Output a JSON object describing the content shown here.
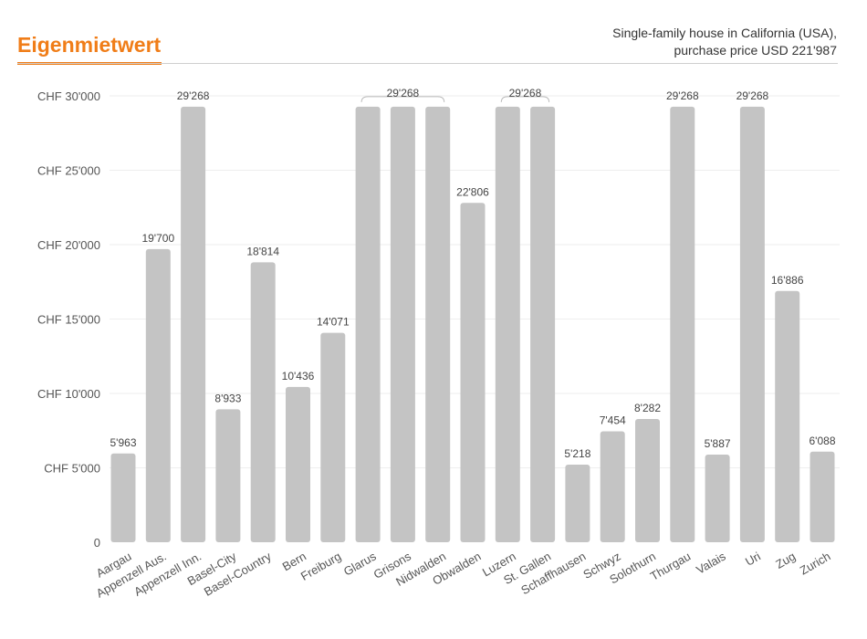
{
  "header": {
    "title": "Eigenmietwert",
    "subtitle_line1": "Single-family house in California (USA),",
    "subtitle_line2": "purchase price USD 221'987"
  },
  "colors": {
    "title": "#f07d18",
    "bar": "#c4c4c4",
    "grid": "#eeeeee",
    "bracket": "#bbbbbb"
  },
  "chart_data": {
    "type": "bar",
    "title": "Eigenmietwert",
    "categories": [
      "Aargau",
      "Appenzell Aus.",
      "Appenzell Inn.",
      "Basel-City",
      "Basel-Country",
      "Bern",
      "Freiburg",
      "Glarus",
      "Grisons",
      "Nidwalden",
      "Obwalden",
      "Luzern",
      "St. Gallen",
      "Schaffhausen",
      "Schwyz",
      "Solothurn",
      "Thurgau",
      "Valais",
      "Uri",
      "Zug",
      "Zurich"
    ],
    "values": [
      5963,
      19700,
      29268,
      8933,
      18814,
      10436,
      14071,
      29268,
      29268,
      29268,
      22806,
      29268,
      29268,
      5218,
      7454,
      8282,
      29268,
      5887,
      29268,
      16886,
      6088
    ],
    "value_labels": [
      {
        "text": "5'963",
        "indices": [
          0
        ]
      },
      {
        "text": "19'700",
        "indices": [
          1
        ]
      },
      {
        "text": "29'268",
        "indices": [
          2
        ]
      },
      {
        "text": "8'933",
        "indices": [
          3
        ]
      },
      {
        "text": "18'814",
        "indices": [
          4
        ]
      },
      {
        "text": "10'436",
        "indices": [
          5
        ]
      },
      {
        "text": "14'071",
        "indices": [
          6
        ]
      },
      {
        "text": "29'268",
        "indices": [
          7,
          8,
          9
        ]
      },
      {
        "text": "22'806",
        "indices": [
          10
        ]
      },
      {
        "text": "29'268",
        "indices": [
          11,
          12
        ]
      },
      {
        "text": "5'218",
        "indices": [
          13
        ]
      },
      {
        "text": "7'454",
        "indices": [
          14
        ]
      },
      {
        "text": "8'282",
        "indices": [
          15
        ]
      },
      {
        "text": "29'268",
        "indices": [
          16
        ]
      },
      {
        "text": "5'887",
        "indices": [
          17
        ]
      },
      {
        "text": "29'268",
        "indices": [
          18
        ]
      },
      {
        "text": "16'886",
        "indices": [
          19
        ]
      },
      {
        "text": "6'088",
        "indices": [
          20
        ]
      }
    ],
    "y_ticks": [
      {
        "value": 0,
        "label": "0"
      },
      {
        "value": 5000,
        "label": "CHF 5'000"
      },
      {
        "value": 10000,
        "label": "CHF 10'000"
      },
      {
        "value": 15000,
        "label": "CHF 15'000"
      },
      {
        "value": 20000,
        "label": "CHF 20'000"
      },
      {
        "value": 25000,
        "label": "CHF 25'000"
      },
      {
        "value": 30000,
        "label": "CHF 30'000"
      }
    ],
    "ylim": [
      0,
      30000
    ],
    "grid": true,
    "xlabel": "",
    "ylabel": ""
  }
}
